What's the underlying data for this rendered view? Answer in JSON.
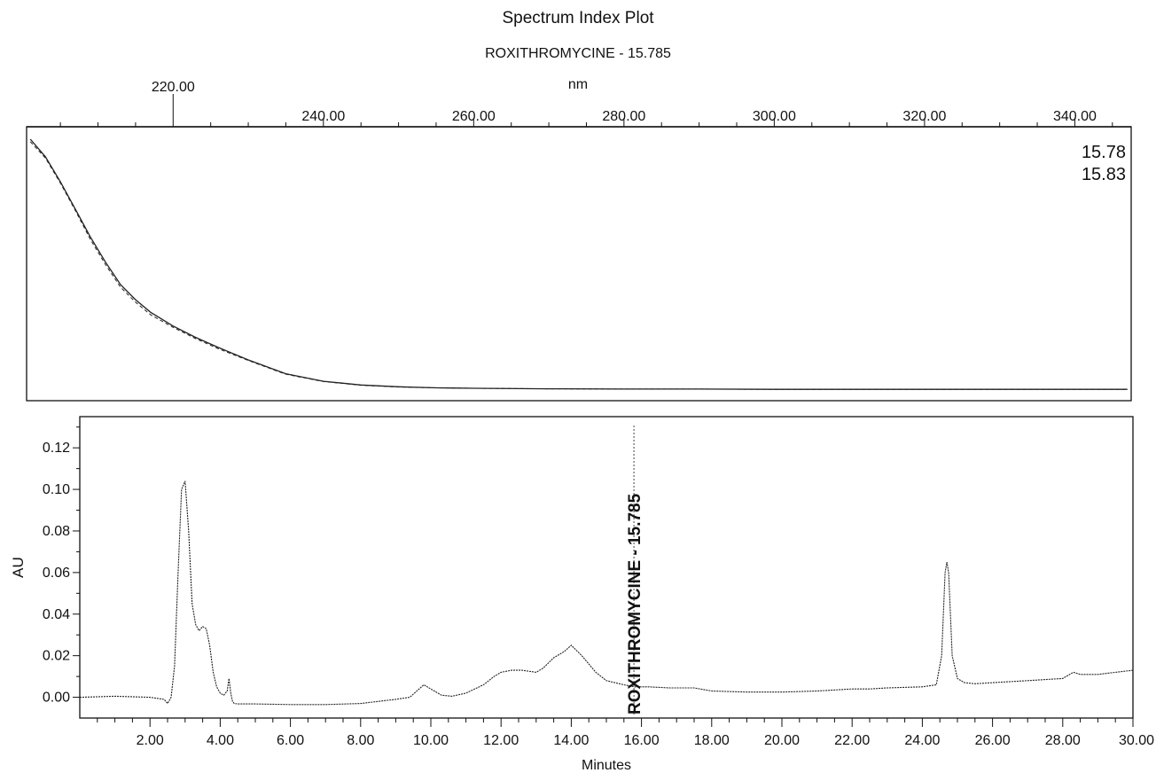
{
  "chart_data": [
    {
      "type": "line",
      "title": "Spectrum Index Plot",
      "subtitle": "ROXITHROMYCINE - 15.785",
      "xlabel": "nm",
      "ylabel": "",
      "xlim": [
        200.5,
        347.5
      ],
      "ylim": [
        0,
        1
      ],
      "x_ticks": [
        "220.00",
        "240.00",
        "260.00",
        "280.00",
        "300.00",
        "320.00",
        "340.00"
      ],
      "legend": [
        "15.78",
        "15.83"
      ],
      "legend_position": "top-right",
      "grid": false,
      "series": [
        {
          "name": "15.78",
          "style": "solid",
          "x": [
            201,
            203,
            205,
            207,
            209,
            211,
            213,
            215,
            217,
            220,
            223,
            226,
            230,
            235,
            240,
            245,
            250,
            255,
            260,
            270,
            280,
            290,
            300,
            310,
            320,
            330,
            340,
            347
          ],
          "y": [
            1.0,
            0.93,
            0.83,
            0.72,
            0.61,
            0.51,
            0.42,
            0.36,
            0.31,
            0.255,
            0.21,
            0.17,
            0.12,
            0.065,
            0.035,
            0.02,
            0.013,
            0.009,
            0.007,
            0.005,
            0.004,
            0.004,
            0.003,
            0.003,
            0.003,
            0.003,
            0.003,
            0.003
          ]
        },
        {
          "name": "15.83",
          "style": "dashed",
          "x": [
            201,
            203,
            205,
            207,
            209,
            211,
            213,
            215,
            217,
            220,
            223,
            226,
            230,
            235,
            240,
            245,
            250,
            255,
            260,
            270,
            280,
            290,
            300,
            310,
            320,
            330,
            340,
            347
          ],
          "y": [
            0.99,
            0.925,
            0.825,
            0.715,
            0.6,
            0.5,
            0.41,
            0.35,
            0.3,
            0.25,
            0.205,
            0.165,
            0.118,
            0.063,
            0.034,
            0.019,
            0.012,
            0.009,
            0.007,
            0.005,
            0.004,
            0.004,
            0.003,
            0.003,
            0.003,
            0.003,
            0.003,
            0.003
          ]
        }
      ]
    },
    {
      "type": "line",
      "title": "",
      "xlabel": "Minutes",
      "ylabel": "AU",
      "xlim": [
        0,
        30
      ],
      "ylim": [
        -0.01,
        0.135
      ],
      "x_ticks": [
        "2.00",
        "4.00",
        "6.00",
        "8.00",
        "10.00",
        "12.00",
        "14.00",
        "16.00",
        "18.00",
        "20.00",
        "22.00",
        "24.00",
        "26.00",
        "28.00",
        "30.00"
      ],
      "y_ticks": [
        "0.00",
        "0.02",
        "0.04",
        "0.06",
        "0.08",
        "0.10",
        "0.12"
      ],
      "grid": false,
      "annotations": [
        {
          "text": "ROXITHROMYCINE - 15.785",
          "x": 15.785
        }
      ],
      "series": [
        {
          "name": "",
          "x": [
            0.0,
            1.0,
            2.0,
            2.4,
            2.5,
            2.6,
            2.7,
            2.8,
            2.9,
            3.0,
            3.1,
            3.2,
            3.3,
            3.4,
            3.5,
            3.6,
            3.7,
            3.8,
            3.9,
            4.0,
            4.1,
            4.2,
            4.25,
            4.3,
            4.35,
            4.4,
            4.5,
            5.0,
            6.0,
            7.0,
            8.0,
            9.0,
            9.4,
            9.6,
            9.8,
            10.0,
            10.3,
            10.6,
            11.0,
            11.5,
            11.8,
            12.0,
            12.3,
            12.6,
            13.0,
            13.2,
            13.5,
            13.8,
            14.0,
            14.3,
            14.7,
            15.0,
            15.5,
            15.8,
            16.2,
            16.8,
            17.5,
            18.0,
            19.0,
            20.0,
            21.0,
            22.0,
            22.5,
            23.0,
            24.0,
            24.4,
            24.55,
            24.65,
            24.7,
            24.75,
            24.85,
            25.0,
            25.2,
            25.5,
            26.0,
            27.0,
            28.0,
            28.3,
            28.5,
            29.0,
            29.5,
            30.0
          ],
          "y": [
            0.0,
            0.0005,
            0.0,
            -0.001,
            -0.003,
            0.0,
            0.015,
            0.06,
            0.1,
            0.104,
            0.08,
            0.045,
            0.035,
            0.032,
            0.034,
            0.033,
            0.025,
            0.012,
            0.005,
            0.002,
            0.001,
            0.003,
            0.009,
            0.002,
            -0.002,
            -0.003,
            -0.0032,
            -0.0032,
            -0.0035,
            -0.0035,
            -0.003,
            -0.001,
            0.0,
            0.003,
            0.006,
            0.004,
            0.001,
            0.0005,
            0.002,
            0.006,
            0.01,
            0.012,
            0.013,
            0.013,
            0.012,
            0.014,
            0.019,
            0.022,
            0.025,
            0.02,
            0.012,
            0.008,
            0.006,
            0.005,
            0.005,
            0.0045,
            0.0045,
            0.003,
            0.0025,
            0.0025,
            0.003,
            0.004,
            0.004,
            0.0045,
            0.005,
            0.006,
            0.02,
            0.06,
            0.065,
            0.06,
            0.02,
            0.009,
            0.007,
            0.0065,
            0.007,
            0.008,
            0.009,
            0.012,
            0.011,
            0.011,
            0.012,
            0.013
          ]
        }
      ]
    }
  ]
}
